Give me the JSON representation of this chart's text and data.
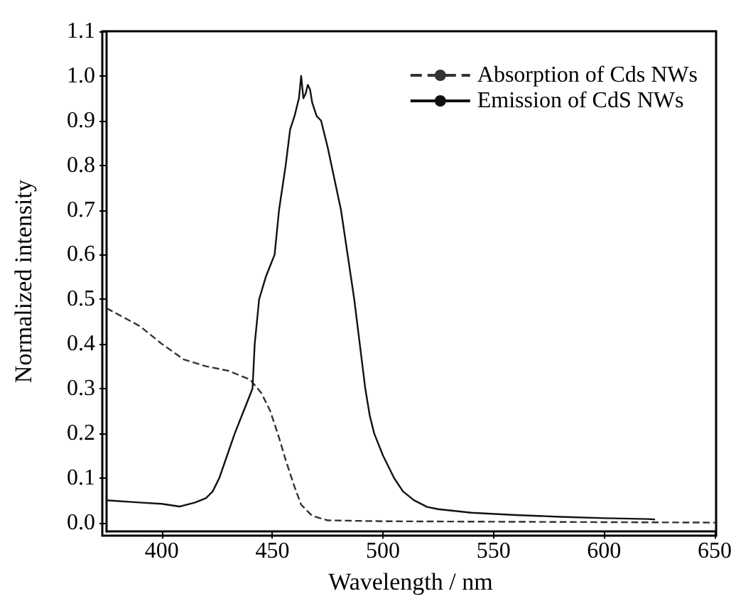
{
  "chart_data": {
    "type": "line",
    "xlabel": "Wavelength / nm",
    "ylabel": "Normalized intensity",
    "xlim": [
      375,
      650
    ],
    "xticks": [
      400,
      450,
      500,
      550,
      600,
      650
    ],
    "ylim": [
      -0.02,
      1.1
    ],
    "yticks": [
      {
        "value": 0,
        "label": "0.0"
      },
      {
        "value": 0.1,
        "label": "0.1"
      },
      {
        "value": 0.2,
        "label": "0.2"
      },
      {
        "value": 0.3,
        "label": "0.3"
      },
      {
        "value": 0.4,
        "label": "0.4"
      },
      {
        "value": 0.5,
        "label": "0.5"
      },
      {
        "value": 0.6,
        "label": "0.6"
      },
      {
        "value": 0.7,
        "label": "0.7"
      },
      {
        "value": 0.8,
        "label": "0.8"
      },
      {
        "value": 0.9,
        "label": "0.9"
      },
      {
        "value": 1.0,
        "label": "1.0"
      },
      {
        "value": 1.1,
        "label": "1.1"
      }
    ],
    "grid": false,
    "legend": "top right",
    "marker": "none",
    "series": [
      {
        "name": "Absorption of Cds NWs",
        "color": "#333333",
        "line_style": "dashed",
        "x": [
          375,
          390,
          400,
          410,
          420,
          430,
          440,
          445,
          449,
          453,
          456,
          460,
          463,
          468,
          475,
          500,
          650
        ],
        "values": [
          0.48,
          0.44,
          0.4,
          0.365,
          0.35,
          0.34,
          0.32,
          0.29,
          0.25,
          0.19,
          0.14,
          0.08,
          0.04,
          0.015,
          0.005,
          0.003,
          0.0
        ]
      },
      {
        "name": "Emission of CdS NWs",
        "color": "#111111",
        "line_style": "solid",
        "x": [
          375,
          390,
          400,
          408,
          415,
          420,
          423,
          426,
          433,
          437,
          441,
          442,
          444,
          447,
          451,
          453,
          456,
          458,
          460,
          462,
          463,
          464,
          465,
          466,
          467,
          468,
          470,
          472,
          475,
          478,
          481,
          484,
          487,
          490,
          492,
          494,
          496,
          500,
          505,
          509,
          514,
          520,
          525,
          540,
          560,
          580,
          600,
          620,
          623
        ],
        "values": [
          0.05,
          0.045,
          0.042,
          0.036,
          0.045,
          0.055,
          0.07,
          0.1,
          0.2,
          0.25,
          0.3,
          0.4,
          0.5,
          0.55,
          0.6,
          0.7,
          0.8,
          0.88,
          0.91,
          0.95,
          1.0,
          0.95,
          0.96,
          0.98,
          0.97,
          0.94,
          0.91,
          0.9,
          0.84,
          0.77,
          0.7,
          0.6,
          0.5,
          0.38,
          0.3,
          0.24,
          0.2,
          0.15,
          0.1,
          0.07,
          0.05,
          0.035,
          0.03,
          0.022,
          0.017,
          0.013,
          0.01,
          0.008,
          0.007
        ]
      }
    ]
  }
}
